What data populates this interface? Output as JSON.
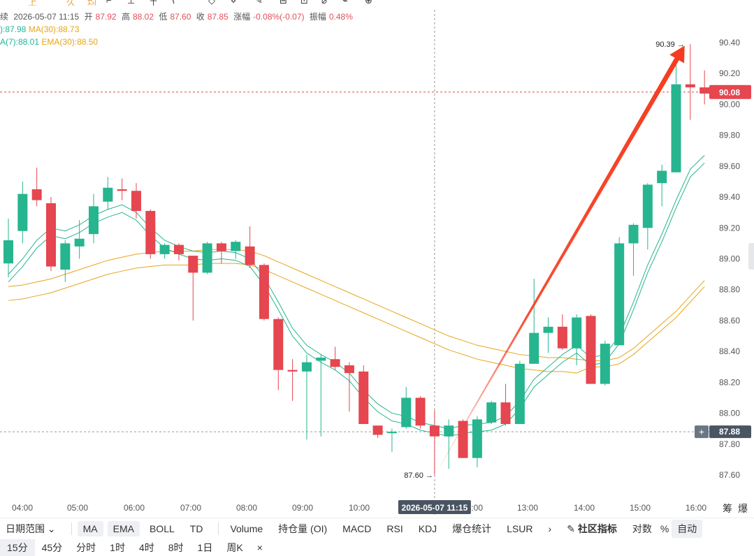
{
  "top_tools": [
    "上",
    "久",
    "均",
    "⌐",
    "⊥",
    "┼",
    "⌇",
    "◇",
    "⋄",
    "✎",
    "⊟",
    "⊡",
    "⌀",
    "⌁",
    "⊕"
  ],
  "info": {
    "prefix": "续",
    "datetime": "2026-05-07 11:15",
    "open_label": "开",
    "open": "87.92",
    "high_label": "高",
    "high": "88.02",
    "low_label": "低",
    "low": "87.60",
    "close_label": "收",
    "close": "87.85",
    "change_label": "涨幅",
    "change": "-0.08%(-0.07)",
    "amp_label": "振幅",
    "amp": "0.48%"
  },
  "ma": {
    "ma_short": "):87.98",
    "ma30": "MA(30):88.73"
  },
  "ema": {
    "ema7": "A(7):88.01",
    "ema30": "EMA(30):88.50"
  },
  "colors": {
    "up": "#26b58f",
    "down": "#e5464f",
    "ma_short": "#26b58f",
    "ma_long": "#e6a51a",
    "arrow": "#f53b1f"
  },
  "chart_data": {
    "type": "candlestick",
    "y_ticks": [
      "90.40",
      "90.20",
      "90.00",
      "89.80",
      "89.60",
      "89.40",
      "89.20",
      "89.00",
      "88.80",
      "88.60",
      "88.40",
      "88.20",
      "88.00",
      "87.80",
      "87.60"
    ],
    "ylim": [
      87.52,
      90.52
    ],
    "x_ticks": [
      "04:00",
      "05:00",
      "06:00",
      "07:00",
      "08:00",
      "09:00",
      "10:00",
      "12:00",
      "13:00",
      "14:00",
      "15:00",
      "16:00"
    ],
    "crosshair_x_label": "2026-05-07 11:15",
    "current_price": "90.08",
    "crosshair_price": "87.88",
    "high_marker": "90.39",
    "low_marker": "87.60",
    "candles": [
      {
        "o": 88.97,
        "c": 89.12,
        "h": 89.26,
        "l": 88.88
      },
      {
        "o": 89.18,
        "c": 89.42,
        "h": 89.5,
        "l": 89.1
      },
      {
        "o": 89.45,
        "c": 89.38,
        "h": 89.59,
        "l": 89.34
      },
      {
        "o": 89.36,
        "c": 88.95,
        "h": 89.4,
        "l": 88.92
      },
      {
        "o": 88.93,
        "c": 89.1,
        "h": 89.12,
        "l": 88.85
      },
      {
        "o": 89.08,
        "c": 89.13,
        "h": 89.25,
        "l": 89.0
      },
      {
        "o": 89.16,
        "c": 89.34,
        "h": 89.42,
        "l": 89.1
      },
      {
        "o": 89.37,
        "c": 89.46,
        "h": 89.53,
        "l": 89.32
      },
      {
        "o": 89.45,
        "c": 89.44,
        "h": 89.52,
        "l": 89.38
      },
      {
        "o": 89.44,
        "c": 89.31,
        "h": 89.49,
        "l": 89.26
      },
      {
        "o": 89.31,
        "c": 89.03,
        "h": 89.32,
        "l": 89.0
      },
      {
        "o": 89.03,
        "c": 89.09,
        "h": 89.1,
        "l": 89.0
      },
      {
        "o": 89.09,
        "c": 89.03,
        "h": 89.1,
        "l": 88.99
      },
      {
        "o": 89.02,
        "c": 88.91,
        "h": 89.02,
        "l": 88.6
      },
      {
        "o": 88.91,
        "c": 89.1,
        "h": 89.11,
        "l": 88.9
      },
      {
        "o": 89.1,
        "c": 89.05,
        "h": 89.11,
        "l": 88.97
      },
      {
        "o": 89.05,
        "c": 89.11,
        "h": 89.12,
        "l": 89.0
      },
      {
        "o": 89.08,
        "c": 88.96,
        "h": 89.21,
        "l": 88.94
      },
      {
        "o": 88.96,
        "c": 88.61,
        "h": 88.97,
        "l": 88.6
      },
      {
        "o": 88.61,
        "c": 88.28,
        "h": 88.62,
        "l": 88.15
      },
      {
        "o": 88.28,
        "c": 88.27,
        "h": 88.35,
        "l": 88.08
      },
      {
        "o": 88.27,
        "c": 88.33,
        "h": 88.38,
        "l": 87.83
      },
      {
        "o": 88.34,
        "c": 88.36,
        "h": 88.38,
        "l": 87.85
      },
      {
        "o": 88.35,
        "c": 88.3,
        "h": 88.43,
        "l": 88.28
      },
      {
        "o": 88.31,
        "c": 88.26,
        "h": 88.33,
        "l": 88.01
      },
      {
        "o": 88.27,
        "c": 87.93,
        "h": 88.31,
        "l": 87.93
      },
      {
        "o": 87.92,
        "c": 87.86,
        "h": 87.92,
        "l": 87.84
      },
      {
        "o": 87.88,
        "c": 87.88,
        "h": 87.9,
        "l": 87.75
      },
      {
        "o": 87.91,
        "c": 88.1,
        "h": 88.17,
        "l": 87.9
      },
      {
        "o": 88.1,
        "c": 87.92,
        "h": 88.11,
        "l": 87.9
      },
      {
        "o": 87.92,
        "c": 87.85,
        "h": 88.02,
        "l": 87.6
      },
      {
        "o": 87.85,
        "c": 87.92,
        "h": 87.96,
        "l": 87.64
      },
      {
        "o": 87.95,
        "c": 87.71,
        "h": 87.96,
        "l": 87.71
      },
      {
        "o": 87.71,
        "c": 87.96,
        "h": 87.98,
        "l": 87.65
      },
      {
        "o": 87.94,
        "c": 88.07,
        "h": 88.08,
        "l": 87.93
      },
      {
        "o": 88.07,
        "c": 87.93,
        "h": 88.19,
        "l": 87.92
      },
      {
        "o": 87.93,
        "c": 88.32,
        "h": 88.34,
        "l": 87.93
      },
      {
        "o": 88.32,
        "c": 88.52,
        "h": 88.87,
        "l": 88.32
      },
      {
        "o": 88.52,
        "c": 88.56,
        "h": 88.62,
        "l": 88.39
      },
      {
        "o": 88.56,
        "c": 88.42,
        "h": 88.64,
        "l": 88.41
      },
      {
        "o": 88.42,
        "c": 88.62,
        "h": 88.64,
        "l": 88.31
      },
      {
        "o": 88.63,
        "c": 88.19,
        "h": 88.64,
        "l": 88.19
      },
      {
        "o": 88.19,
        "c": 88.45,
        "h": 88.47,
        "l": 88.18
      },
      {
        "o": 88.44,
        "c": 89.1,
        "h": 89.14,
        "l": 88.44
      },
      {
        "o": 89.1,
        "c": 89.22,
        "h": 89.23,
        "l": 88.89
      },
      {
        "o": 89.2,
        "c": 89.48,
        "h": 89.49,
        "l": 89.06
      },
      {
        "o": 89.49,
        "c": 89.57,
        "h": 89.61,
        "l": 89.34
      },
      {
        "o": 89.56,
        "c": 90.13,
        "h": 90.32,
        "l": 89.56
      },
      {
        "o": 90.13,
        "c": 90.11,
        "h": 90.39,
        "l": 89.9
      },
      {
        "o": 90.11,
        "c": 90.07,
        "h": 90.22,
        "l": 90.0
      }
    ],
    "ma_short": [
      88.9,
      89.0,
      89.12,
      89.2,
      89.18,
      89.22,
      89.28,
      89.32,
      89.35,
      89.3,
      89.2,
      89.12,
      89.08,
      89.05,
      89.04,
      89.05,
      89.04,
      89.0,
      88.88,
      88.72,
      88.55,
      88.44,
      88.38,
      88.33,
      88.26,
      88.15,
      88.06,
      88.0,
      87.98,
      87.94,
      87.92,
      87.9,
      87.92,
      87.93,
      87.94,
      87.98,
      88.08,
      88.22,
      88.3,
      88.38,
      88.44,
      88.36,
      88.38,
      88.5,
      88.72,
      88.96,
      89.16,
      89.38,
      89.58,
      89.67
    ],
    "ma_long": [
      88.82,
      88.83,
      88.85,
      88.87,
      88.9,
      88.93,
      88.96,
      88.99,
      89.01,
      89.03,
      89.04,
      89.05,
      89.05,
      89.05,
      89.06,
      89.06,
      89.06,
      89.05,
      89.02,
      88.98,
      88.94,
      88.9,
      88.86,
      88.82,
      88.78,
      88.74,
      88.7,
      88.66,
      88.62,
      88.58,
      88.54,
      88.5,
      88.47,
      88.44,
      88.42,
      88.4,
      88.38,
      88.37,
      88.36,
      88.36,
      88.35,
      88.34,
      88.34,
      88.36,
      88.42,
      88.5,
      88.58,
      88.66,
      88.76,
      88.86
    ],
    "arrow": {
      "from": [
        30.4,
        87.66
      ],
      "to": [
        47.6,
        90.38
      ]
    }
  },
  "toolbar": {
    "date_range": "日期范围",
    "ma": "MA",
    "ema": "EMA",
    "boll": "BOLL",
    "td": "TD",
    "volume": "Volume",
    "oi": "持仓量 (OI)",
    "macd": "MACD",
    "rsi": "RSI",
    "kdj": "KDJ",
    "liq": "爆仓统计",
    "lsur": "LSUR",
    "more": "›",
    "community": "社区指标",
    "log": "对数",
    "percent": "%",
    "auto": "自动"
  },
  "corner": {
    "a": "筹",
    "b": "爆"
  },
  "intervals": [
    "15分",
    "45分",
    "分时",
    "1时",
    "4时",
    "8时",
    "1日",
    "周K",
    "×"
  ]
}
